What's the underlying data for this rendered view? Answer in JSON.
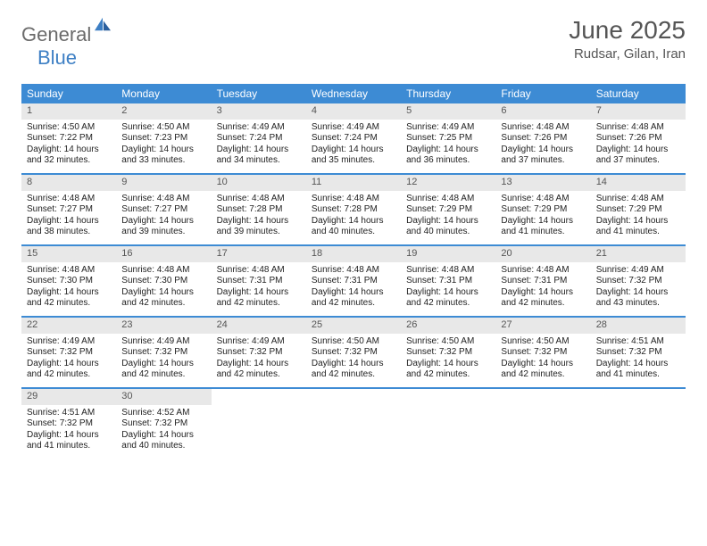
{
  "logo": {
    "part1": "General",
    "part2": "Blue"
  },
  "title": "June 2025",
  "location": "Rudsar, Gilan, Iran",
  "colors": {
    "header_bg": "#3d8bd4",
    "header_text": "#ffffff",
    "daynum_bg": "#e8e8e8",
    "border": "#3d8bd4",
    "logo_gray": "#6b6b6b",
    "logo_blue": "#3d7fc4",
    "title_color": "#555555",
    "body_text": "#222222"
  },
  "day_headers": [
    "Sunday",
    "Monday",
    "Tuesday",
    "Wednesday",
    "Thursday",
    "Friday",
    "Saturday"
  ],
  "weeks": [
    [
      {
        "n": "1",
        "sr": "4:50 AM",
        "ss": "7:22 PM",
        "dh": "14",
        "dm": "32"
      },
      {
        "n": "2",
        "sr": "4:50 AM",
        "ss": "7:23 PM",
        "dh": "14",
        "dm": "33"
      },
      {
        "n": "3",
        "sr": "4:49 AM",
        "ss": "7:24 PM",
        "dh": "14",
        "dm": "34"
      },
      {
        "n": "4",
        "sr": "4:49 AM",
        "ss": "7:24 PM",
        "dh": "14",
        "dm": "35"
      },
      {
        "n": "5",
        "sr": "4:49 AM",
        "ss": "7:25 PM",
        "dh": "14",
        "dm": "36"
      },
      {
        "n": "6",
        "sr": "4:48 AM",
        "ss": "7:26 PM",
        "dh": "14",
        "dm": "37"
      },
      {
        "n": "7",
        "sr": "4:48 AM",
        "ss": "7:26 PM",
        "dh": "14",
        "dm": "37"
      }
    ],
    [
      {
        "n": "8",
        "sr": "4:48 AM",
        "ss": "7:27 PM",
        "dh": "14",
        "dm": "38"
      },
      {
        "n": "9",
        "sr": "4:48 AM",
        "ss": "7:27 PM",
        "dh": "14",
        "dm": "39"
      },
      {
        "n": "10",
        "sr": "4:48 AM",
        "ss": "7:28 PM",
        "dh": "14",
        "dm": "39"
      },
      {
        "n": "11",
        "sr": "4:48 AM",
        "ss": "7:28 PM",
        "dh": "14",
        "dm": "40"
      },
      {
        "n": "12",
        "sr": "4:48 AM",
        "ss": "7:29 PM",
        "dh": "14",
        "dm": "40"
      },
      {
        "n": "13",
        "sr": "4:48 AM",
        "ss": "7:29 PM",
        "dh": "14",
        "dm": "41"
      },
      {
        "n": "14",
        "sr": "4:48 AM",
        "ss": "7:29 PM",
        "dh": "14",
        "dm": "41"
      }
    ],
    [
      {
        "n": "15",
        "sr": "4:48 AM",
        "ss": "7:30 PM",
        "dh": "14",
        "dm": "42"
      },
      {
        "n": "16",
        "sr": "4:48 AM",
        "ss": "7:30 PM",
        "dh": "14",
        "dm": "42"
      },
      {
        "n": "17",
        "sr": "4:48 AM",
        "ss": "7:31 PM",
        "dh": "14",
        "dm": "42"
      },
      {
        "n": "18",
        "sr": "4:48 AM",
        "ss": "7:31 PM",
        "dh": "14",
        "dm": "42"
      },
      {
        "n": "19",
        "sr": "4:48 AM",
        "ss": "7:31 PM",
        "dh": "14",
        "dm": "42"
      },
      {
        "n": "20",
        "sr": "4:48 AM",
        "ss": "7:31 PM",
        "dh": "14",
        "dm": "42"
      },
      {
        "n": "21",
        "sr": "4:49 AM",
        "ss": "7:32 PM",
        "dh": "14",
        "dm": "43"
      }
    ],
    [
      {
        "n": "22",
        "sr": "4:49 AM",
        "ss": "7:32 PM",
        "dh": "14",
        "dm": "42"
      },
      {
        "n": "23",
        "sr": "4:49 AM",
        "ss": "7:32 PM",
        "dh": "14",
        "dm": "42"
      },
      {
        "n": "24",
        "sr": "4:49 AM",
        "ss": "7:32 PM",
        "dh": "14",
        "dm": "42"
      },
      {
        "n": "25",
        "sr": "4:50 AM",
        "ss": "7:32 PM",
        "dh": "14",
        "dm": "42"
      },
      {
        "n": "26",
        "sr": "4:50 AM",
        "ss": "7:32 PM",
        "dh": "14",
        "dm": "42"
      },
      {
        "n": "27",
        "sr": "4:50 AM",
        "ss": "7:32 PM",
        "dh": "14",
        "dm": "42"
      },
      {
        "n": "28",
        "sr": "4:51 AM",
        "ss": "7:32 PM",
        "dh": "14",
        "dm": "41"
      }
    ],
    [
      {
        "n": "29",
        "sr": "4:51 AM",
        "ss": "7:32 PM",
        "dh": "14",
        "dm": "41"
      },
      {
        "n": "30",
        "sr": "4:52 AM",
        "ss": "7:32 PM",
        "dh": "14",
        "dm": "40"
      },
      null,
      null,
      null,
      null,
      null
    ]
  ],
  "labels": {
    "sunrise": "Sunrise:",
    "sunset": "Sunset:",
    "daylight": "Daylight:",
    "hours": "hours",
    "and": "and",
    "minutes": "minutes."
  }
}
